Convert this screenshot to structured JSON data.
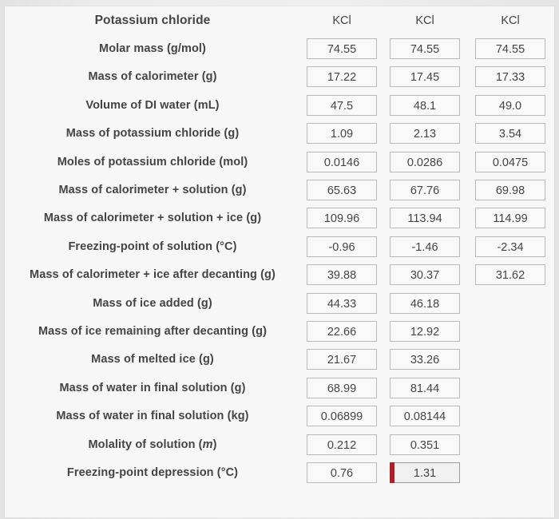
{
  "header": {
    "label": "Potassium chloride",
    "columns": [
      "KCl",
      "KCl",
      "KCl"
    ]
  },
  "rows": [
    {
      "label": "Molar mass (g/mol)",
      "values": [
        "74.55",
        "74.55",
        "74.55"
      ]
    },
    {
      "label": "Mass of calorimeter (g)",
      "values": [
        "17.22",
        "17.45",
        "17.33"
      ]
    },
    {
      "label": "Volume of DI water (mL)",
      "values": [
        "47.5",
        "48.1",
        "49.0"
      ]
    },
    {
      "label": "Mass of potassium chloride (g)",
      "values": [
        "1.09",
        "2.13",
        "3.54"
      ]
    },
    {
      "label": "Moles of potassium chloride (mol)",
      "values": [
        "0.0146",
        "0.0286",
        "0.0475"
      ]
    },
    {
      "label": "Mass of calorimeter + solution (g)",
      "values": [
        "65.63",
        "67.76",
        "69.98"
      ]
    },
    {
      "label": "Mass of calorimeter + solution + ice (g)",
      "values": [
        "109.96",
        "113.94",
        "114.99"
      ]
    },
    {
      "label": "Freezing-point of solution (°C)",
      "values": [
        "-0.96",
        "-1.46",
        "-2.34"
      ]
    },
    {
      "label": "Mass of calorimeter + ice after decanting (g)",
      "values": [
        "39.88",
        "30.37",
        "31.62"
      ]
    },
    {
      "label": "Mass of ice added (g)",
      "values": [
        "44.33",
        "46.18",
        ""
      ]
    },
    {
      "label": "Mass of ice remaining after decanting (g)",
      "values": [
        "22.66",
        "12.92",
        ""
      ]
    },
    {
      "label": "Mass of melted ice (g)",
      "values": [
        "21.67",
        "33.26",
        ""
      ]
    },
    {
      "label": "Mass of water in final solution (g)",
      "values": [
        "68.99",
        "81.44",
        ""
      ]
    },
    {
      "label": "Mass of water in final solution (kg)",
      "values": [
        "0.06899",
        "0.08144",
        ""
      ]
    },
    {
      "label_prefix": "Molality of solution (",
      "label_italic": "m",
      "label_suffix": ")",
      "values": [
        "0.212",
        "0.351",
        ""
      ]
    },
    {
      "label": "Freezing-point depression (°C)",
      "values": [
        "0.76",
        "1.31",
        ""
      ]
    }
  ],
  "active_cell_accent": "#b11f24"
}
